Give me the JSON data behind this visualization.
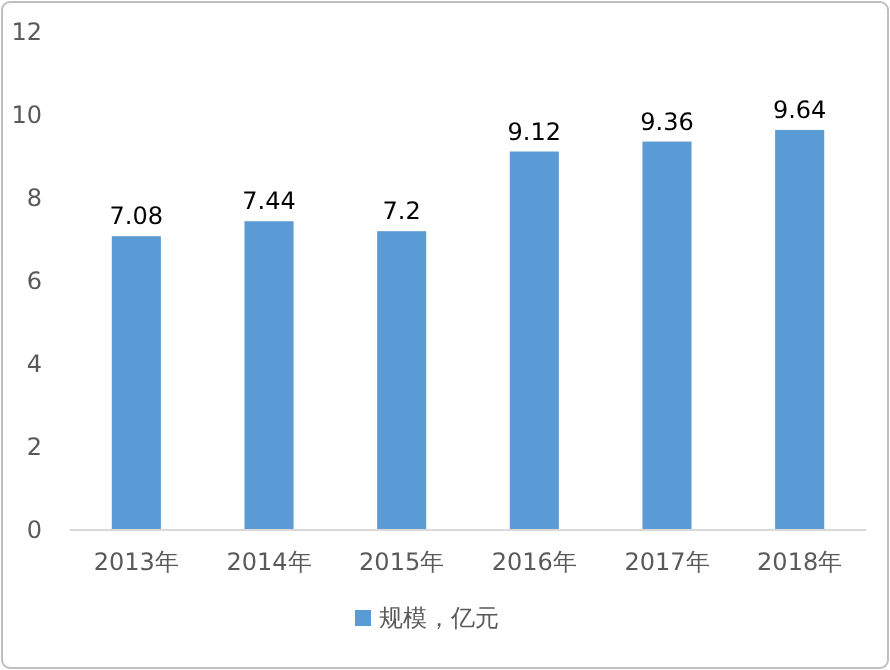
{
  "chart_data": {
    "type": "bar",
    "categories": [
      "2013年",
      "2014年",
      "2015年",
      "2016年",
      "2017年",
      "2018年"
    ],
    "series": [
      {
        "name": "规模，亿元",
        "color": "#5b9bd5",
        "values": [
          7.08,
          7.44,
          7.2,
          9.12,
          9.36,
          9.64
        ]
      }
    ],
    "ylim": [
      0,
      12
    ],
    "yticks": [
      0,
      2,
      4,
      6,
      8,
      10,
      12
    ],
    "data_labels": true,
    "legend": "bottom"
  }
}
